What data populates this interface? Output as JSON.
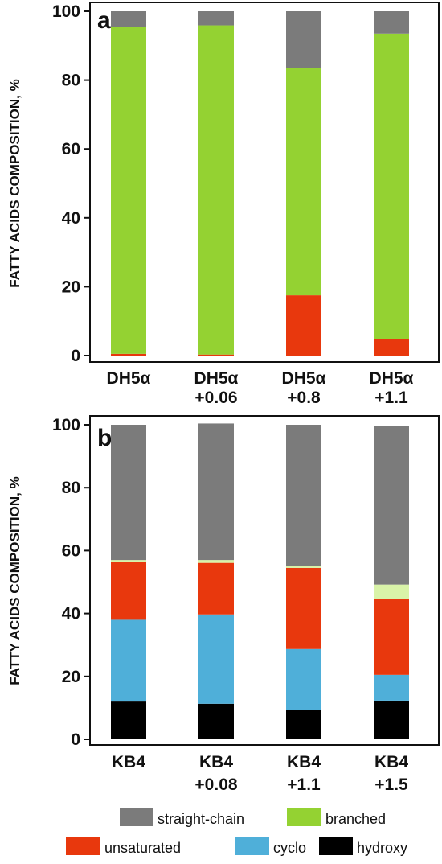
{
  "chart_data": [
    {
      "type": "bar",
      "stacked": true,
      "panel_label": "a",
      "ylabel": "FATTY ACIDS COMPOSITION, %",
      "ylim": [
        0,
        100
      ],
      "yticks": [
        0,
        20,
        40,
        60,
        80,
        100
      ],
      "grid": false,
      "categories": [
        {
          "line1": "DH5α",
          "line2": ""
        },
        {
          "line1": "DH5α",
          "line2": "+0.06"
        },
        {
          "line1": "DH5α",
          "line2": "+0.8"
        },
        {
          "line1": "DH5α",
          "line2": "+1.1"
        }
      ],
      "series": [
        {
          "key": "unsaturated",
          "color": "#e8380d",
          "values": [
            0.5,
            0.3,
            17.5,
            4.8
          ]
        },
        {
          "key": "branched",
          "color": "#94d232",
          "values": [
            95.0,
            95.6,
            66.0,
            88.7
          ]
        },
        {
          "key": "straight-chain",
          "color": "#7b7b7b",
          "values": [
            4.5,
            4.1,
            16.5,
            6.5
          ]
        }
      ]
    },
    {
      "type": "bar",
      "stacked": true,
      "panel_label": "b",
      "ylabel": "FATTY ACIDS COMPOSITION, %",
      "ylim": [
        0,
        100
      ],
      "yticks": [
        0,
        20,
        40,
        60,
        80,
        100
      ],
      "grid": false,
      "categories": [
        {
          "line1": "KB4",
          "line2": ""
        },
        {
          "line1": "KB4",
          "line2": "+0.08"
        },
        {
          "line1": "KB4",
          "line2": "+1.1"
        },
        {
          "line1": "KB4",
          "line2": "+1.5"
        }
      ],
      "series": [
        {
          "key": "hydroxy",
          "color": "#000000",
          "values": [
            12.0,
            11.3,
            9.3,
            12.3
          ]
        },
        {
          "key": "cyclo",
          "color": "#4fafd9",
          "values": [
            26.0,
            28.4,
            19.4,
            8.2
          ]
        },
        {
          "key": "unsaturated",
          "color": "#e8380d",
          "values": [
            18.3,
            16.4,
            25.8,
            24.2
          ]
        },
        {
          "key": "branched",
          "color": "#d9f3a8",
          "values": [
            0.7,
            0.9,
            0.7,
            4.5
          ]
        },
        {
          "key": "straight-chain",
          "color": "#7b7b7b",
          "values": [
            43.0,
            43.4,
            44.8,
            50.5
          ]
        }
      ]
    }
  ],
  "legend": {
    "placement": "bottom",
    "items": [
      {
        "key": "straight-chain",
        "label": "straight-chain",
        "color": "#7b7b7b"
      },
      {
        "key": "branched",
        "label": "branched",
        "color": "#94d232"
      },
      {
        "key": "unsaturated",
        "label": "unsaturated",
        "color": "#e8380d"
      },
      {
        "key": "cyclo",
        "label": "cyclo",
        "color": "#4fafd9"
      },
      {
        "key": "hydroxy",
        "label": "hydroxy",
        "color": "#000000"
      }
    ]
  }
}
